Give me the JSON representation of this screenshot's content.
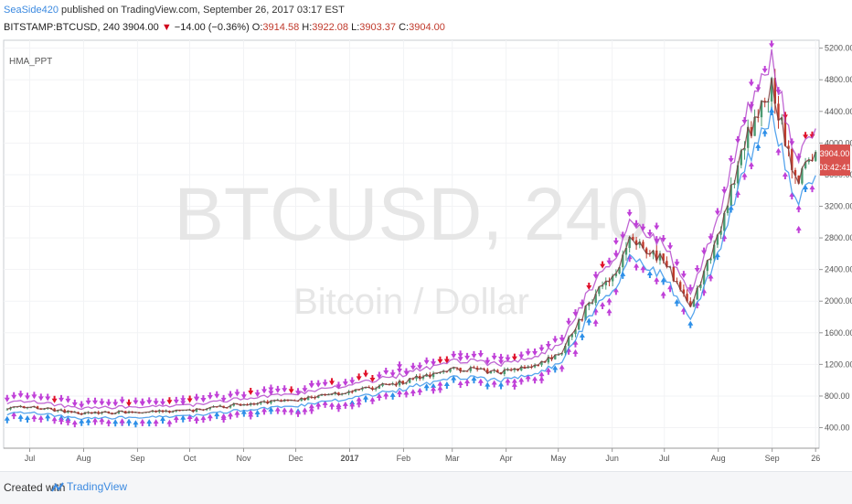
{
  "header": {
    "author": "SeaSide420",
    "published": " published on TradingView.com, September 26, 2017 03:17 EST",
    "symbol": "BITSTAMP:BTCUSD, 240",
    "last": "3904.00",
    "down_arrow": "▼",
    "change": "−14.00 (−0.36%)",
    "o_label": "O:",
    "o_value": "3914.58",
    "h_label": "H:",
    "h_value": "3922.08",
    "l_label": "L:",
    "l_value": "3903.37",
    "c_label": "C:",
    "c_value": "3904.00"
  },
  "indicator_label": "HMA_PPT",
  "watermark": {
    "title": "BTCUSD, 240",
    "subtitle": "Bitcoin / Dollar"
  },
  "price_tag": {
    "price": "3904.00",
    "countdown": "03:42:41"
  },
  "footer": {
    "created_with": "Created with",
    "brand": "TradingView"
  },
  "colors": {
    "candle_up": "#4a9a72",
    "candle_down": "#c0392b",
    "arrow_magenta": "#c040d8",
    "arrow_blue": "#2d8fe8",
    "arrow_red": "#e0102a",
    "price_tag": "#d9534f",
    "axis_text": "#555555",
    "watermark": "#e6e6e6"
  },
  "chart_data": {
    "type": "line",
    "title": "",
    "xlabel": "",
    "ylabel": "",
    "ylim": [
      140,
      5300
    ],
    "y_ticks": [
      400,
      800,
      1200,
      1600,
      2000,
      2400,
      2800,
      3200,
      3600,
      4000,
      4400,
      4800,
      5200
    ],
    "y_tick_labels": [
      "400.00",
      "800.00",
      "1200.00",
      "1600.00",
      "2000.00",
      "2400.00",
      "2800.00",
      "3200.00",
      "3600.00",
      "4000.00",
      "4400.00",
      "4800.00",
      "5200.00"
    ],
    "x_ticks": [
      "Jul",
      "Aug",
      "Sep",
      "Oct",
      "Nov",
      "Dec",
      "2017",
      "Feb",
      "Mar",
      "Apr",
      "May",
      "Jun",
      "Jul",
      "Aug",
      "Sep",
      "26"
    ],
    "x": [
      "2016-06-20",
      "2016-07-01",
      "2016-08-01",
      "2016-09-01",
      "2016-10-01",
      "2016-11-01",
      "2016-12-01",
      "2017-01-01",
      "2017-02-01",
      "2017-03-01",
      "2017-04-01",
      "2017-05-01",
      "2017-05-25",
      "2017-06-01",
      "2017-06-12",
      "2017-07-01",
      "2017-07-16",
      "2017-08-01",
      "2017-08-15",
      "2017-09-01",
      "2017-09-15",
      "2017-09-26"
    ],
    "series": [
      {
        "values": [
          650,
          660,
          580,
          600,
          610,
          700,
          750,
          850,
          980,
          1150,
          1100,
          1300,
          2200,
          2300,
          2800,
          2500,
          1900,
          2800,
          4000,
          4700,
          3500,
          3904
        ]
      }
    ],
    "grid": true
  }
}
